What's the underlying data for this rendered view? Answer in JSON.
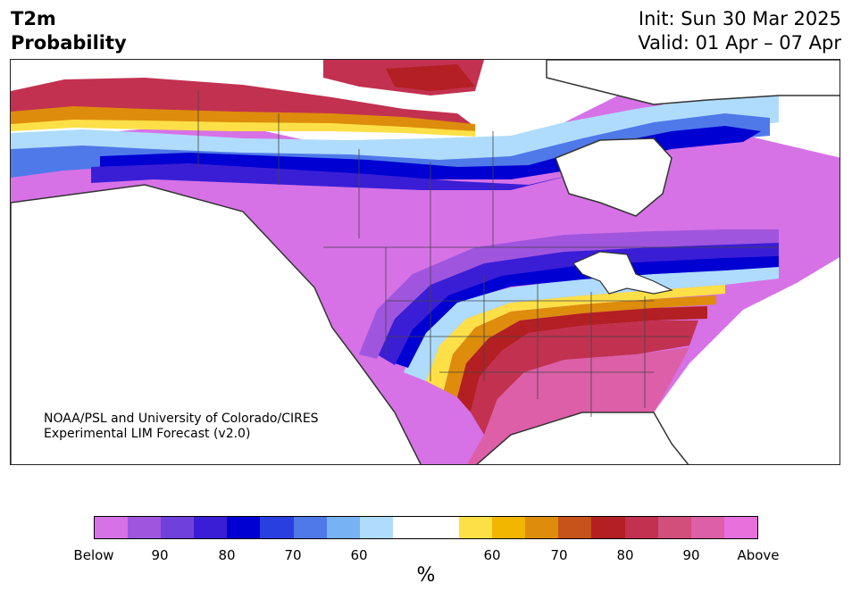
{
  "header": {
    "variable": "T2m",
    "product": "Probability",
    "init": "Init: Sun 30 Mar 2025",
    "valid": "Valid: 01 Apr – 07 Apr"
  },
  "credit": {
    "line1": "NOAA/PSL and University of Colorado/CIRES",
    "line2": "Experimental LIM Forecast (v2.0)"
  },
  "colorbar": {
    "colors": [
      "#d672e6",
      "#a055de",
      "#7040dc",
      "#3a1ed6",
      "#0000d2",
      "#2a3fdf",
      "#4f79e8",
      "#77b2f4",
      "#afdcfc",
      "#ffffff",
      "#ffffff",
      "#fde047",
      "#f2b500",
      "#de8c0b",
      "#c7531a",
      "#b31f22",
      "#c23150",
      "#d24e7b",
      "#dc5fa7",
      "#e870dc"
    ],
    "labels": [
      "Below",
      "90",
      "80",
      "70",
      "60",
      "60",
      "70",
      "80",
      "90",
      "Above"
    ],
    "unit": "%"
  },
  "map": {
    "colors": {
      "ocean": "#ffffff",
      "below_strong": "#0000d2",
      "below_mid": "#3a1ed6",
      "below_weak": "#77b2f4",
      "below_light": "#afdcfc",
      "below_purple": "#a055de",
      "below_violet": "#d672e6",
      "above_yellow": "#fde047",
      "above_orange": "#de8c0b",
      "above_red": "#b31f22",
      "above_rose": "#c23150",
      "above_pink": "#dc5fa7"
    }
  }
}
